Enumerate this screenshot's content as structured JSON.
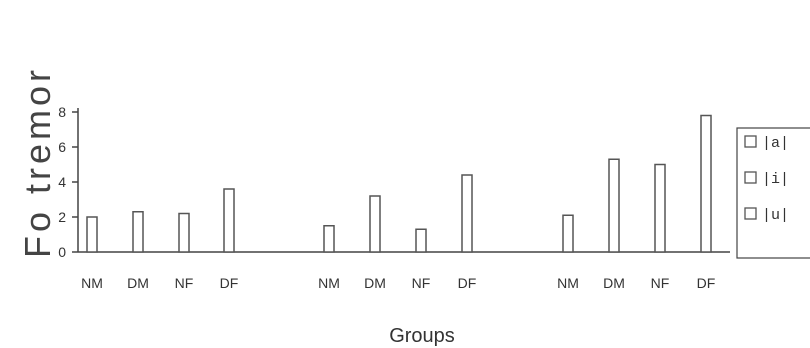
{
  "chart_data": {
    "type": "bar",
    "ylabel": "Fo tremor",
    "xlabel": "Groups",
    "ylim": [
      0,
      8
    ],
    "yticks": [
      "0",
      "2",
      "4",
      "6",
      "8"
    ],
    "panels": [
      {
        "categories": [
          "NM",
          "DM",
          "NF",
          "DF"
        ],
        "series": [
          {
            "name": "|a|",
            "values": [
              2.0,
              2.3,
              2.2,
              3.6
            ]
          }
        ]
      },
      {
        "categories": [
          "NM",
          "DM",
          "NF",
          "DF"
        ],
        "series": [
          {
            "name": "|i|",
            "values": [
              1.5,
              3.2,
              1.3,
              4.4
            ]
          }
        ]
      },
      {
        "categories": [
          "NM",
          "DM",
          "NF",
          "DF"
        ],
        "series": [
          {
            "name": "|u|",
            "values": [
              2.1,
              5.3,
              5.0,
              7.8
            ]
          }
        ]
      }
    ],
    "legend": [
      "|a|",
      "|i|",
      "|u|"
    ],
    "legend_position": "right",
    "grid": false
  },
  "colors": {
    "axis": "#444444",
    "bar_stroke": "#555555",
    "bar_fill": "#ffffff"
  }
}
